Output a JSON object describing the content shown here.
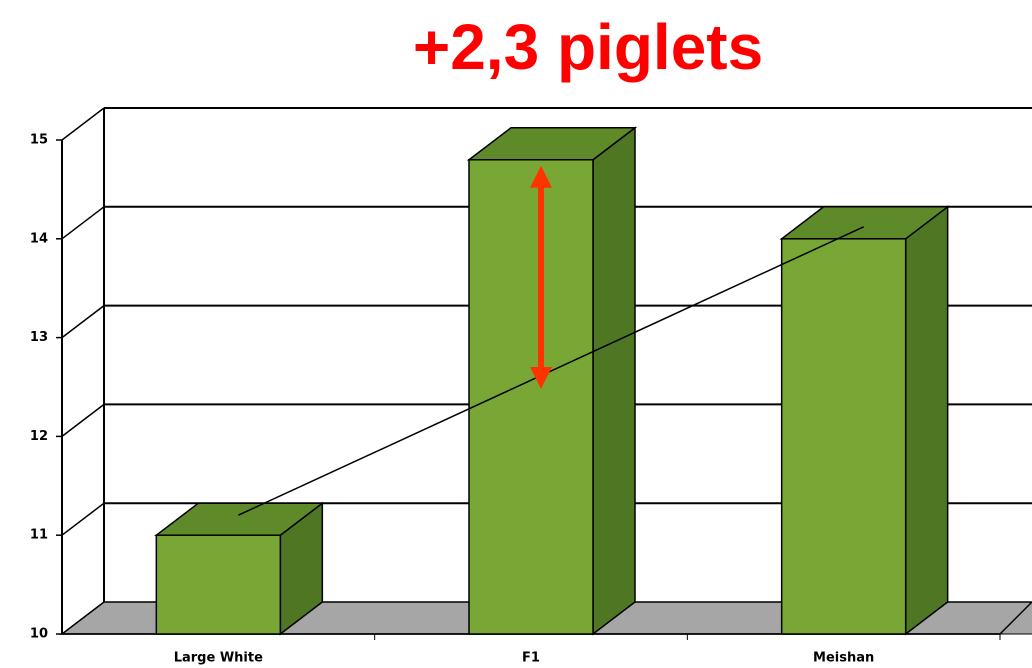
{
  "chart_data": {
    "type": "bar3d",
    "title": "+2,3 piglets",
    "categories": [
      "Large White",
      "F1",
      "Meishan"
    ],
    "values": [
      11,
      14.8,
      14
    ],
    "color": "#79a736",
    "ylim": [
      10,
      15
    ],
    "yticks": [
      10,
      11,
      12,
      13,
      14,
      15
    ],
    "grid": true
  }
}
